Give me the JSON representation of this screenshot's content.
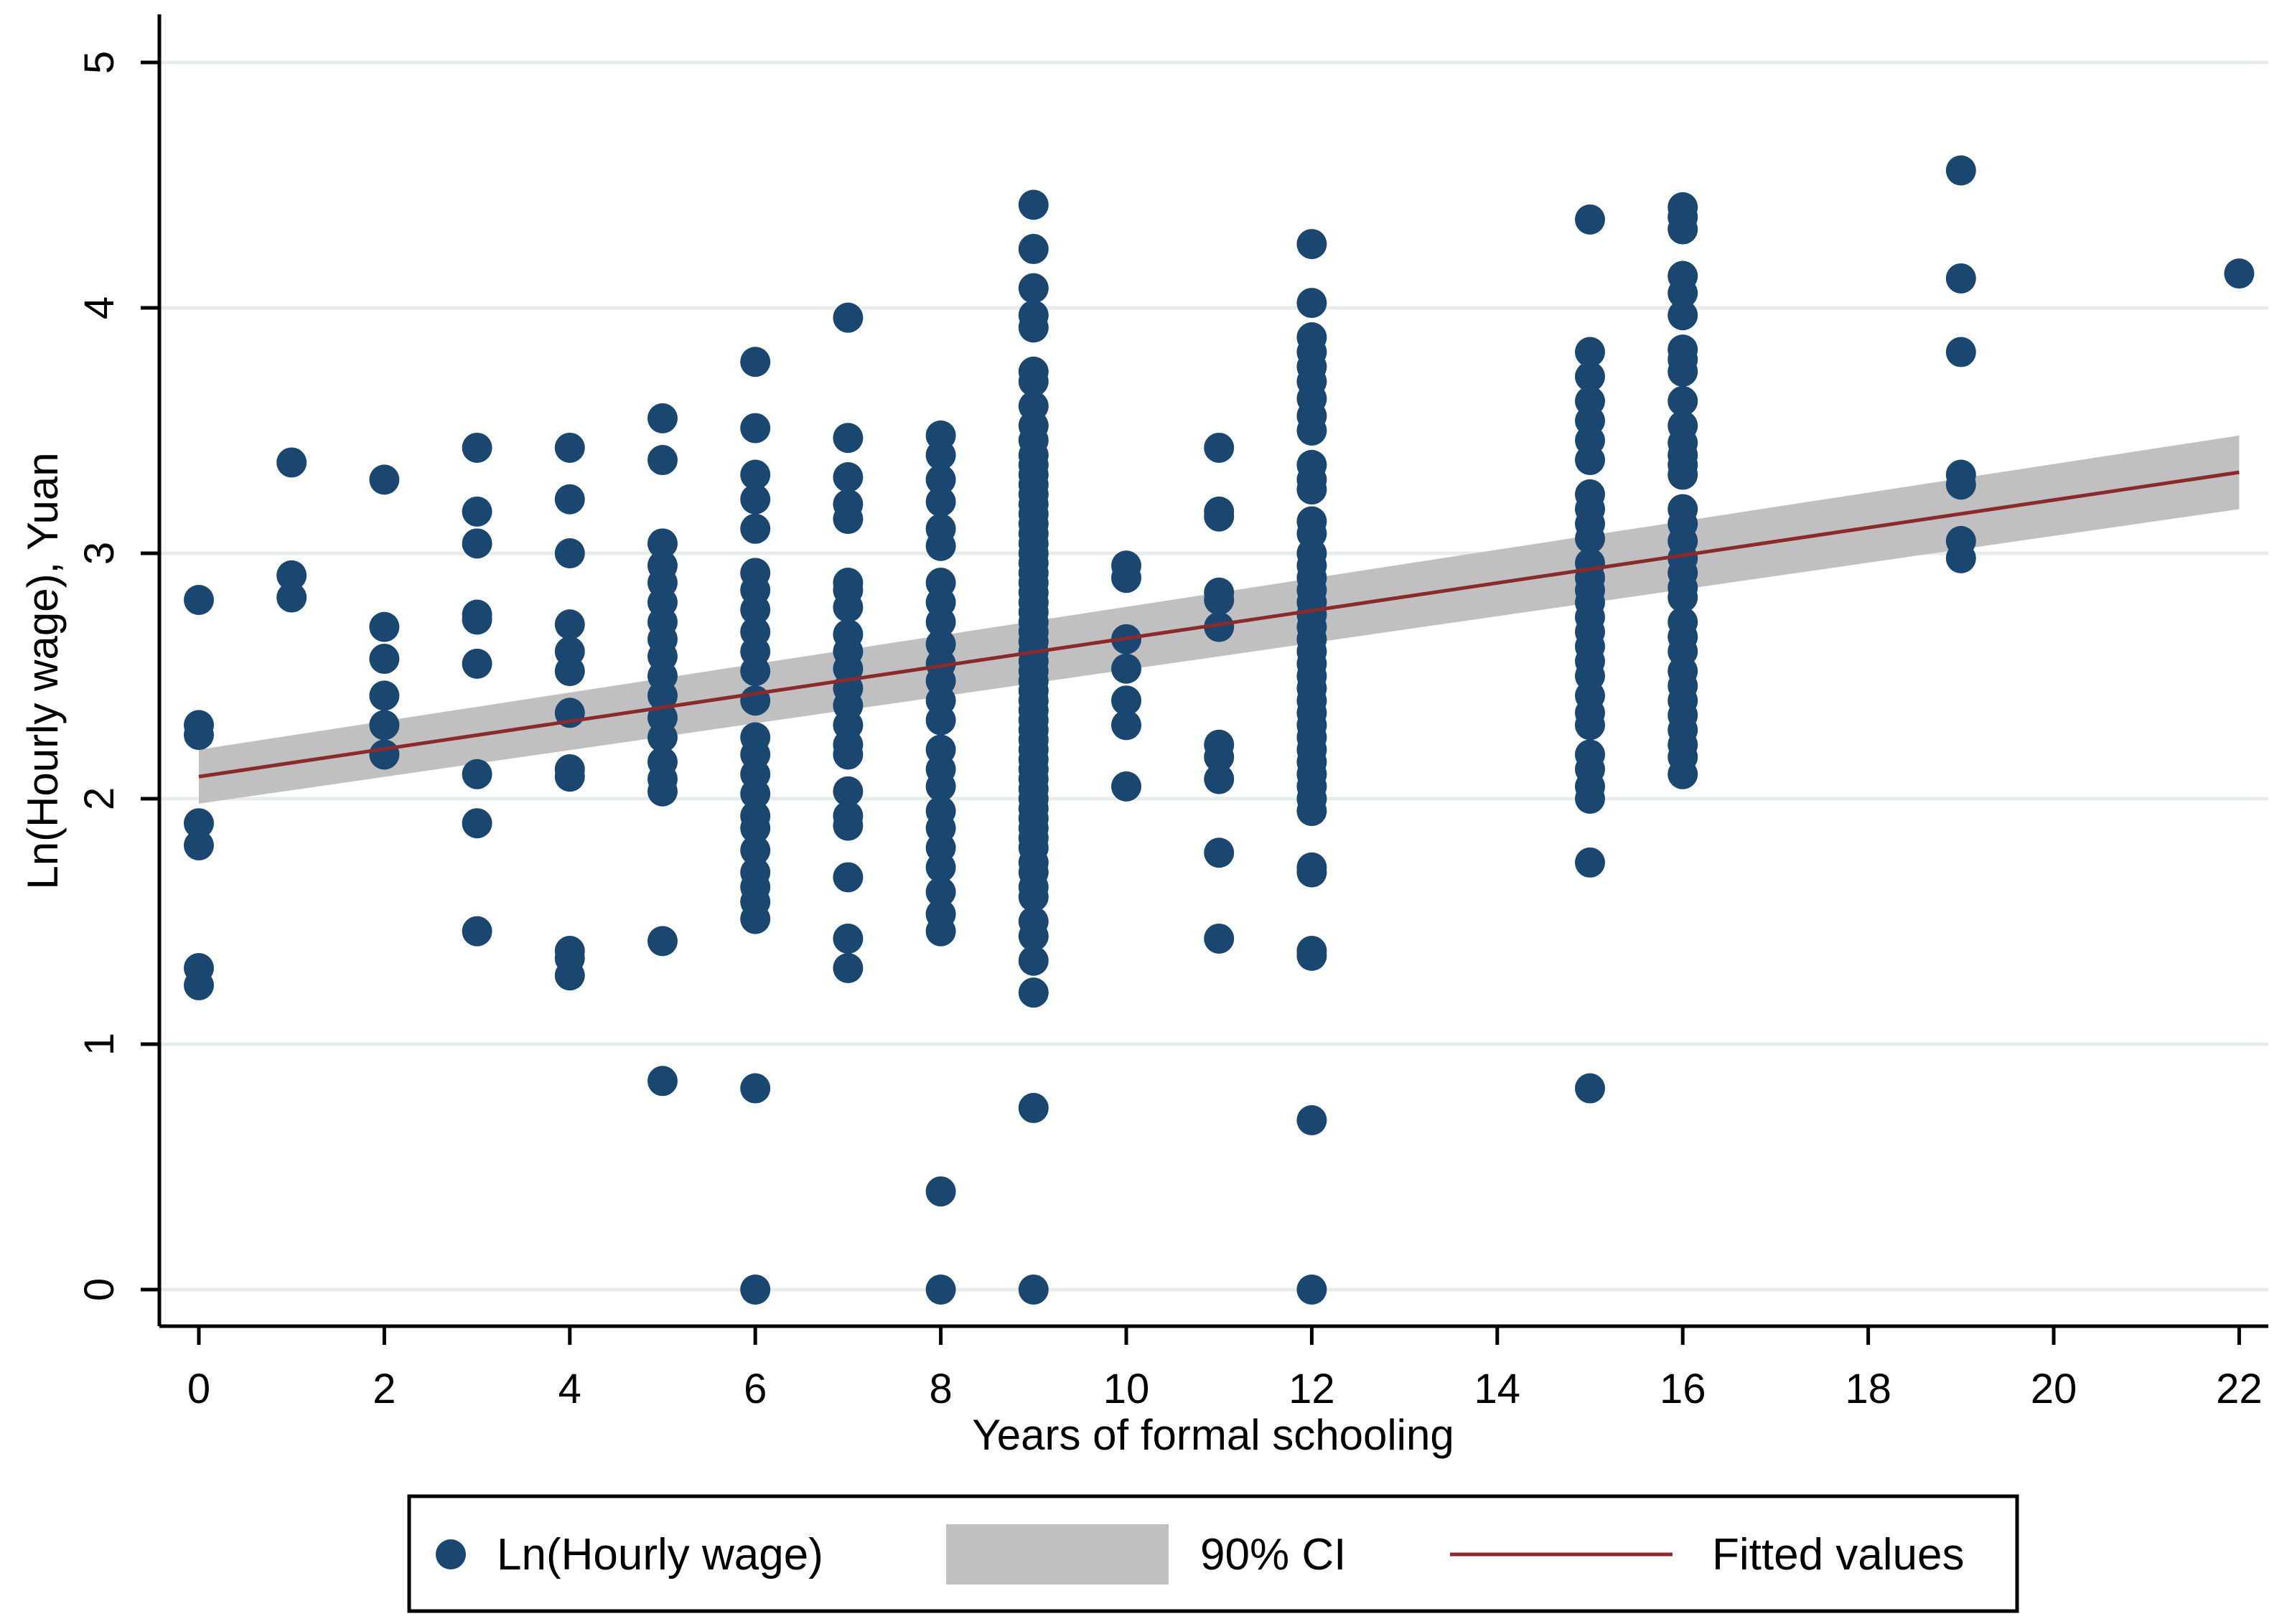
{
  "chart_data": {
    "type": "scatter",
    "title": "",
    "xlabel": "Years of formal schooling",
    "ylabel": "Ln(Hourly wage), Yuan",
    "xlim": [
      -0.4,
      22.4
    ],
    "ylim": [
      -0.15,
      5.15
    ],
    "x_ticks": [
      0,
      2,
      4,
      6,
      8,
      10,
      12,
      14,
      16,
      18,
      20,
      22
    ],
    "y_ticks": [
      0,
      1,
      2,
      3,
      4,
      5
    ],
    "grid": "horizontal",
    "legend": {
      "position": "bottom",
      "items": [
        {
          "key": "scatter",
          "label": "Ln(Hourly wage)"
        },
        {
          "key": "ci",
          "label": "90% CI"
        },
        {
          "key": "fit",
          "label": "Fitted values"
        }
      ]
    },
    "colors": {
      "marker": "#1a4770",
      "ci_band": "#c0c0c0",
      "fit_line": "#8b2a2a",
      "grid": "#e6ecea",
      "axis": "#000000"
    },
    "fit": {
      "x": [
        0,
        22
      ],
      "y": [
        2.09,
        3.33
      ]
    },
    "ci": {
      "x": [
        0,
        22
      ],
      "lower": [
        1.98,
        3.18
      ],
      "upper": [
        2.2,
        3.48
      ]
    },
    "series": [
      {
        "name": "Ln(Hourly wage)",
        "points": [
          {
            "x": 0,
            "y": [
              2.81,
              2.3,
              2.26,
              1.9,
              1.81,
              1.31,
              1.24
            ]
          },
          {
            "x": 1,
            "y": [
              3.37,
              2.91,
              2.82
            ]
          },
          {
            "x": 2,
            "y": [
              3.3,
              2.7,
              2.57,
              2.42,
              2.3,
              2.18
            ]
          },
          {
            "x": 3,
            "y": [
              3.43,
              3.17,
              3.04,
              2.75,
              2.73,
              2.55,
              2.1,
              1.9,
              1.46
            ]
          },
          {
            "x": 4,
            "y": [
              3.43,
              3.22,
              3.0,
              2.71,
              2.6,
              2.52,
              2.35,
              2.12,
              2.09,
              1.38,
              1.35,
              1.28
            ]
          },
          {
            "x": 5,
            "y": [
              3.55,
              3.38,
              3.04,
              2.95,
              2.88,
              2.8,
              2.72,
              2.65,
              2.58,
              2.5,
              2.42,
              2.33,
              2.25,
              2.15,
              2.08,
              2.03,
              1.42,
              0.85
            ]
          },
          {
            "x": 6,
            "y": [
              3.78,
              3.51,
              3.32,
              3.22,
              3.1,
              2.92,
              2.85,
              2.77,
              2.68,
              2.6,
              2.52,
              2.4,
              2.25,
              2.18,
              2.1,
              2.02,
              1.93,
              1.88,
              1.79,
              1.7,
              1.64,
              1.58,
              1.51,
              0.82,
              0.0
            ]
          },
          {
            "x": 7,
            "y": [
              3.96,
              3.47,
              3.31,
              3.2,
              3.14,
              2.88,
              2.85,
              2.78,
              2.67,
              2.6,
              2.53,
              2.45,
              2.38,
              2.3,
              2.22,
              2.18,
              2.03,
              1.93,
              1.89,
              1.68,
              1.43,
              1.31
            ]
          },
          {
            "x": 8,
            "y": [
              3.48,
              3.4,
              3.3,
              3.21,
              3.1,
              3.03,
              2.88,
              2.8,
              2.72,
              2.63,
              2.55,
              2.48,
              2.4,
              2.32,
              2.2,
              2.12,
              2.05,
              1.95,
              1.88,
              1.8,
              1.72,
              1.62,
              1.53,
              1.46,
              0.4,
              0.0
            ]
          },
          {
            "x": 9,
            "y": [
              4.42,
              4.24,
              4.08,
              3.97,
              3.92,
              3.74,
              3.7,
              3.6,
              3.52,
              3.46,
              3.4,
              3.36,
              3.32,
              3.28,
              3.24,
              3.2,
              3.16,
              3.12,
              3.08,
              3.04,
              3.0,
              2.96,
              2.92,
              2.88,
              2.84,
              2.8,
              2.76,
              2.72,
              2.68,
              2.64,
              2.6,
              2.56,
              2.52,
              2.48,
              2.44,
              2.4,
              2.36,
              2.32,
              2.28,
              2.24,
              2.2,
              2.16,
              2.12,
              2.08,
              2.04,
              2.0,
              1.96,
              1.92,
              1.88,
              1.84,
              1.8,
              1.74,
              1.7,
              1.64,
              1.6,
              1.5,
              1.44,
              1.34,
              1.21,
              0.74,
              0.0
            ]
          },
          {
            "x": 10,
            "y": [
              2.95,
              2.9,
              2.65,
              2.53,
              2.4,
              2.3,
              2.05
            ]
          },
          {
            "x": 11,
            "y": [
              3.43,
              3.17,
              3.15,
              2.84,
              2.81,
              2.7,
              2.22,
              2.17,
              2.08,
              1.78,
              1.43
            ]
          },
          {
            "x": 12,
            "y": [
              4.26,
              4.02,
              3.88,
              3.82,
              3.76,
              3.7,
              3.63,
              3.56,
              3.5,
              3.36,
              3.3,
              3.26,
              3.13,
              3.08,
              3.0,
              2.95,
              2.9,
              2.85,
              2.8,
              2.75,
              2.7,
              2.65,
              2.6,
              2.55,
              2.5,
              2.45,
              2.4,
              2.35,
              2.3,
              2.25,
              2.2,
              2.15,
              2.1,
              2.05,
              2.0,
              1.95,
              1.72,
              1.7,
              1.38,
              1.36,
              0.69,
              0.0
            ]
          },
          {
            "x": 15,
            "y": [
              4.36,
              3.82,
              3.72,
              3.62,
              3.54,
              3.46,
              3.38,
              3.24,
              3.18,
              3.12,
              3.06,
              2.96,
              2.9,
              2.85,
              2.8,
              2.74,
              2.68,
              2.62,
              2.56,
              2.5,
              2.42,
              2.35,
              2.3,
              2.18,
              2.12,
              2.05,
              2.0,
              1.74,
              0.82
            ]
          },
          {
            "x": 16,
            "y": [
              4.41,
              4.37,
              4.32,
              4.13,
              4.06,
              3.97,
              3.83,
              3.79,
              3.74,
              3.62,
              3.52,
              3.45,
              3.4,
              3.36,
              3.32,
              3.18,
              3.12,
              3.05,
              2.98,
              2.92,
              2.86,
              2.82,
              2.72,
              2.66,
              2.6,
              2.52,
              2.46,
              2.4,
              2.34,
              2.28,
              2.22,
              2.17,
              2.1
            ]
          },
          {
            "x": 19,
            "y": [
              4.56,
              4.12,
              3.82,
              3.32,
              3.28,
              3.05,
              2.98
            ]
          },
          {
            "x": 22,
            "y": [
              4.14
            ]
          }
        ]
      }
    ]
  }
}
